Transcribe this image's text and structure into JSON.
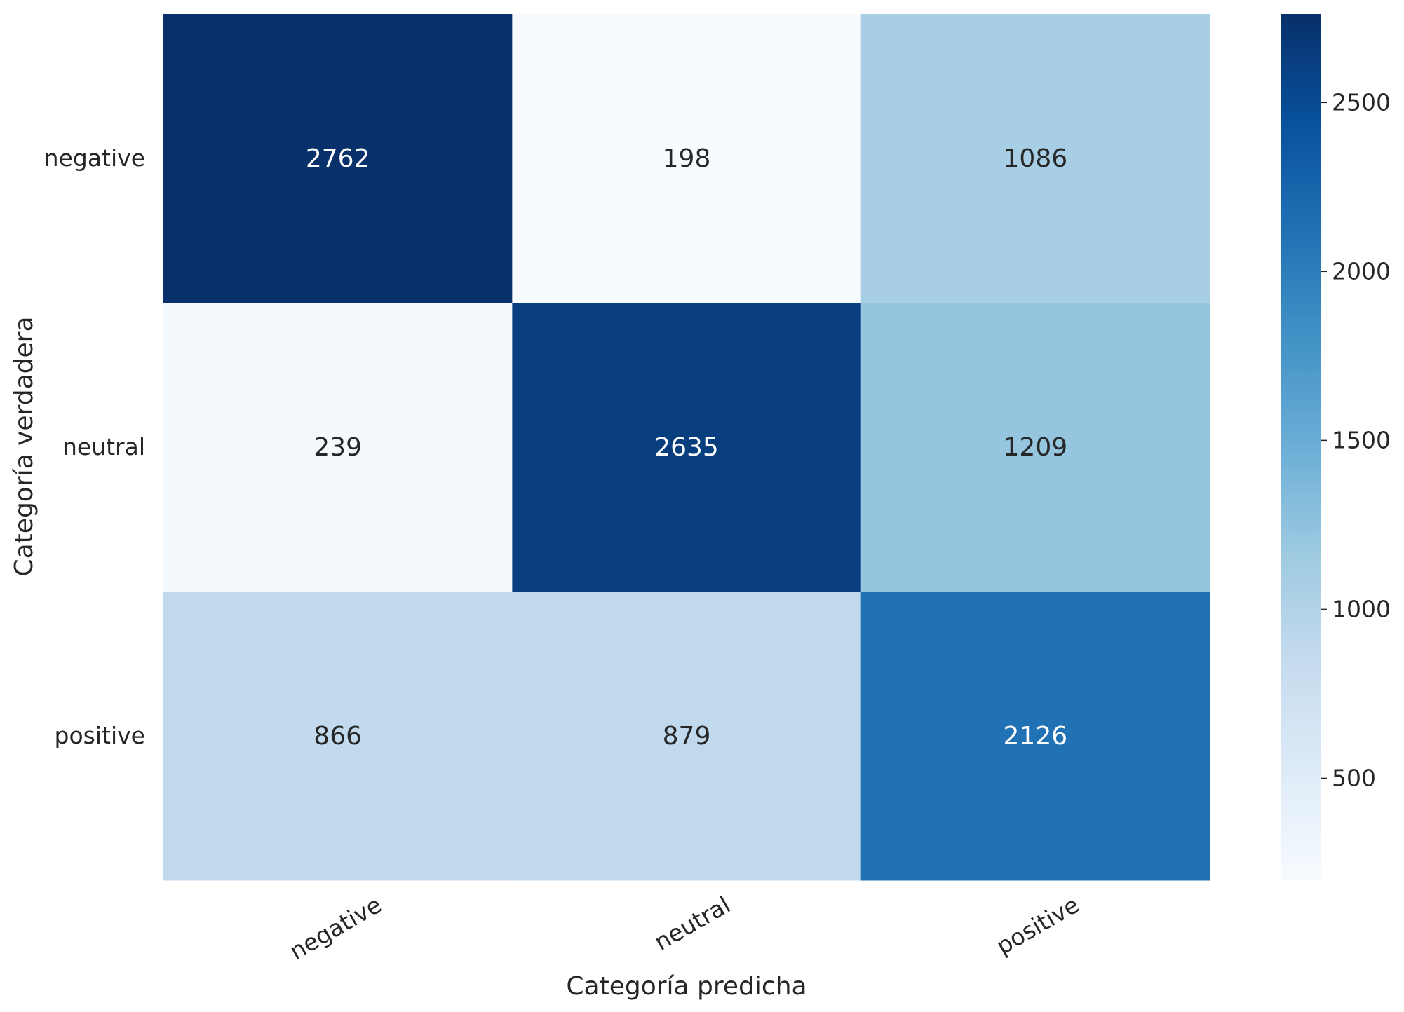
{
  "chart_data": {
    "type": "heatmap",
    "title": "",
    "xlabel": "Categoría predicha",
    "ylabel": "Categoría verdadera",
    "x_categories": [
      "negative",
      "neutral",
      "positive"
    ],
    "y_categories": [
      "negative",
      "neutral",
      "positive"
    ],
    "values": [
      [
        2762,
        198,
        1086
      ],
      [
        239,
        2635,
        1209
      ],
      [
        866,
        879,
        2126
      ]
    ],
    "colormap": "Blues",
    "colorbar": {
      "range": [
        198,
        2762
      ],
      "ticks": [
        500,
        1000,
        1500,
        2000,
        2500
      ]
    },
    "text_color_dark": "#262626",
    "text_color_light": "#ffffff",
    "grid": false
  }
}
